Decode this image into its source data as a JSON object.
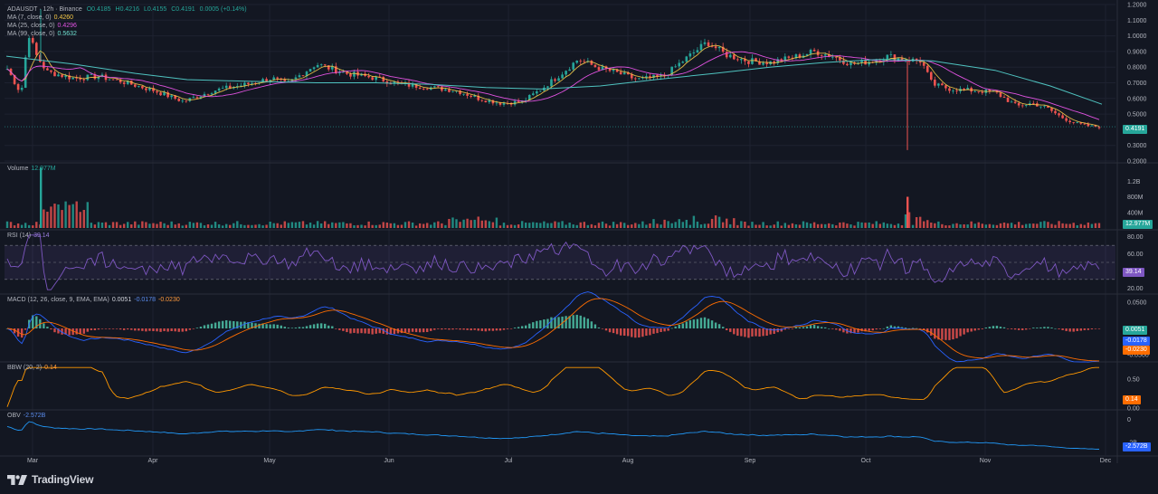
{
  "header": {
    "symbol": "ADAUSDT · 12h · Binance",
    "o": "O0.4185",
    "h": "H0.4216",
    "l": "L0.4155",
    "c": "C0.4191",
    "chg": "0.0005 (+0.14%)"
  },
  "indicators": {
    "ma7": {
      "label": "MA (7, close, 0)",
      "value": "0.4260"
    },
    "ma25": {
      "label": "MA (25, close, 0)",
      "value": "0.4296"
    },
    "ma99": {
      "label": "MA (99, close, 0)",
      "value": "0.5632"
    },
    "volume": {
      "label": "Volume",
      "value": "12.977M"
    },
    "rsi": {
      "label": "RSI (14)",
      "value": "39.14"
    },
    "macd": {
      "label": "MACD (12, 26, close, 9, EMA, EMA)",
      "v1": "0.0051",
      "v2": "-0.0178",
      "v3": "-0.0230"
    },
    "bbw": {
      "label": "BBW (20, 2)",
      "value": "0.14"
    },
    "obv": {
      "label": "OBV",
      "value": "-2.572B"
    }
  },
  "price_tag": "0.4191",
  "brand": "TradingView",
  "colors": {
    "bg": "#131722",
    "up": "#26a69a",
    "down": "#ef5350",
    "ma7": "#f7c948",
    "ma25": "#e052e0",
    "ma99": "#4fc3c0",
    "rsi": "#7e57c2",
    "macd": "#2962ff",
    "signal": "#ff6d00",
    "bbw": "#ff9800",
    "obv": "#2196f3"
  },
  "chart_data": {
    "type": "line",
    "title": "ADAUSDT · 12h · Binance",
    "x_labels": [
      "Mar",
      "Apr",
      "May",
      "Jun",
      "Jul",
      "Aug",
      "Sep",
      "Oct",
      "Nov",
      "Dec"
    ],
    "price": {
      "ylim": [
        0.2,
        1.2
      ],
      "ticks": [
        "1.2000",
        "1.1000",
        "1.0000",
        "0.9000",
        "0.8000",
        "0.7000",
        "0.6000",
        "0.5000",
        "0.3000",
        "0.2000"
      ],
      "tick_values": [
        1.2,
        1.1,
        1.0,
        0.9,
        0.8,
        0.7,
        0.6,
        0.5,
        0.3,
        0.2
      ],
      "close_series": [
        [
          "Feb 26",
          0.8
        ],
        [
          "Mar 1",
          0.63
        ],
        [
          "Mar 3",
          1.02
        ],
        [
          "Mar 5",
          0.88
        ],
        [
          "Mar 8",
          0.77
        ],
        [
          "Mar 15",
          0.73
        ],
        [
          "Mar 22",
          0.74
        ],
        [
          "Mar 28",
          0.71
        ],
        [
          "Apr 6",
          0.65
        ],
        [
          "Apr 14",
          0.58
        ],
        [
          "Apr 22",
          0.65
        ],
        [
          "May 1",
          0.69
        ],
        [
          "May 8",
          0.73
        ],
        [
          "May 12",
          0.69
        ],
        [
          "May 20",
          0.82
        ],
        [
          "May 28",
          0.76
        ],
        [
          "Jun 5",
          0.73
        ],
        [
          "Jun 12",
          0.69
        ],
        [
          "Jun 20",
          0.67
        ],
        [
          "Jun 27",
          0.65
        ],
        [
          "Jul 3",
          0.6
        ],
        [
          "Jul 9",
          0.57
        ],
        [
          "Jul 15",
          0.58
        ],
        [
          "Jul 20",
          0.66
        ],
        [
          "Jul 25",
          0.75
        ],
        [
          "Jul 30",
          0.85
        ],
        [
          "Aug 4",
          0.8
        ],
        [
          "Aug 10",
          0.76
        ],
        [
          "Aug 15",
          0.72
        ],
        [
          "Aug 22",
          0.74
        ],
        [
          "Aug 28",
          0.85
        ],
        [
          "Sep 3",
          0.96
        ],
        [
          "Sep 8",
          0.88
        ],
        [
          "Sep 14",
          0.84
        ],
        [
          "Sep 20",
          0.83
        ],
        [
          "Sep 26",
          0.86
        ],
        [
          "Oct 2",
          0.9
        ],
        [
          "Oct 7",
          0.87
        ],
        [
          "Oct 12",
          0.82
        ],
        [
          "Oct 18",
          0.84
        ],
        [
          "Oct 22",
          0.87
        ],
        [
          "Oct 26",
          0.85
        ],
        [
          "Oct 31",
          0.84
        ],
        [
          "Nov 3",
          0.69
        ],
        [
          "Nov 8",
          0.66
        ],
        [
          "Nov 14",
          0.65
        ],
        [
          "Nov 20",
          0.64
        ],
        [
          "Nov 26",
          0.55
        ],
        [
          "Nov 30",
          0.57
        ],
        [
          "Dec 4",
          0.54
        ],
        [
          "Dec 8",
          0.48
        ],
        [
          "Dec 12",
          0.44
        ],
        [
          "Dec 16",
          0.42
        ],
        [
          "Dec 19",
          0.419
        ]
      ],
      "ma99_series": [
        [
          "Feb 26",
          0.87
        ],
        [
          "Mar 15",
          0.82
        ],
        [
          "Apr 1",
          0.76
        ],
        [
          "Apr 15",
          0.72
        ],
        [
          "May 1",
          0.71
        ],
        [
          "May 20",
          0.7
        ],
        [
          "Jun 5",
          0.7
        ],
        [
          "Jun 20",
          0.69
        ],
        [
          "Jul 5",
          0.67
        ],
        [
          "Jul 20",
          0.66
        ],
        [
          "Aug 5",
          0.68
        ],
        [
          "Aug 20",
          0.72
        ],
        [
          "Sep 5",
          0.76
        ],
        [
          "Sep 20",
          0.8
        ],
        [
          "Oct 5",
          0.83
        ],
        [
          "Oct 20",
          0.85
        ],
        [
          "Nov 3",
          0.84
        ],
        [
          "Nov 20",
          0.78
        ],
        [
          "Dec 5",
          0.68
        ],
        [
          "Dec 19",
          0.563
        ]
      ]
    },
    "volume": {
      "ylim": [
        0,
        1.6
      ],
      "ticks": [
        "1.2B",
        "800M",
        "400M"
      ],
      "tick_values": [
        1.2,
        0.8,
        0.4
      ],
      "unit": "B"
    },
    "rsi": {
      "ylim": [
        15,
        85
      ],
      "ticks": [
        "80.00",
        "60.00",
        "40.00",
        "20.00"
      ],
      "tick_values": [
        80,
        60,
        40,
        20
      ],
      "last": 39.14
    },
    "macd": {
      "ylim": [
        -0.06,
        0.06
      ],
      "ticks": [
        "0.0500",
        "-0.0250",
        "-0.0500"
      ],
      "tick_values": [
        0.05,
        -0.025,
        -0.05
      ]
    },
    "bbw": {
      "ylim": [
        0,
        0.75
      ],
      "ticks": [
        "0.50",
        "0.00"
      ],
      "tick_values": [
        0.5,
        0.0
      ],
      "last": 0.14
    },
    "obv": {
      "ylim": [
        -3,
        0.6
      ],
      "ticks": [
        "0",
        "-2B"
      ],
      "tick_values": [
        0,
        -2
      ],
      "last": -2.572
    }
  }
}
